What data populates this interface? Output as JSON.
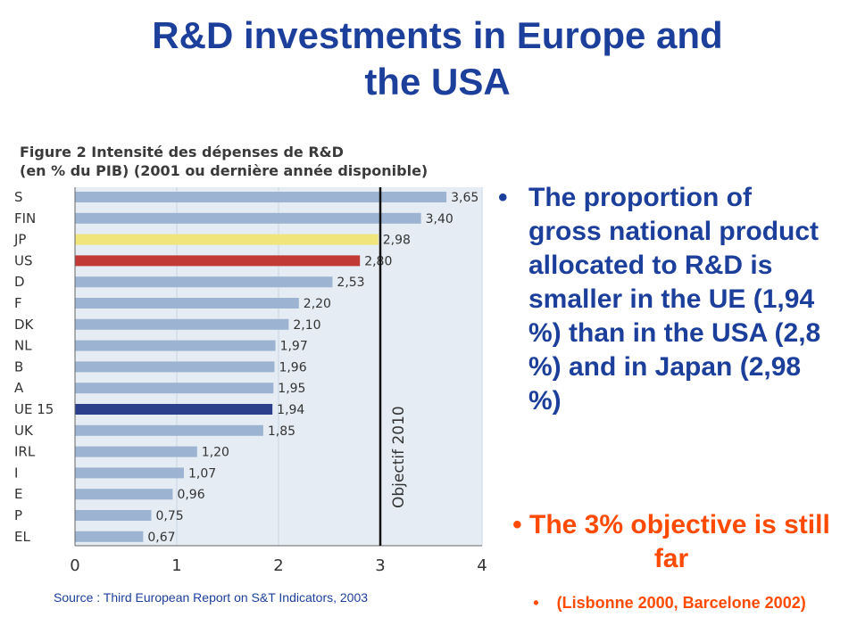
{
  "slide": {
    "title": "R&D  investments in Europe and\nthe USA",
    "source": "Source : Third European Report on S&T Indicators, 2003"
  },
  "figure": {
    "title": "Figure 2   Intensité des dépenses de R&D\n(en % du PIB) (2001 ou dernière année disponible)"
  },
  "bullets": {
    "main": "The proportion of gross national product allocated to  R&D is smaller in the UE (1,94 %) than in the USA (2,8 %) and in Japan (2,98 %)",
    "objective": "The 3% objective is  still far",
    "note": "(Lisbonne 2000, Barcelone 2002)"
  },
  "chart_data": {
    "type": "bar",
    "orientation": "horizontal",
    "categories": [
      "S",
      "FIN",
      "JP",
      "US",
      "D",
      "F",
      "DK",
      "NL",
      "B",
      "A",
      "UE 15",
      "UK",
      "IRL",
      "I",
      "E",
      "P",
      "EL"
    ],
    "values": [
      3.65,
      3.4,
      2.98,
      2.8,
      2.53,
      2.2,
      2.1,
      1.97,
      1.96,
      1.95,
      1.94,
      1.85,
      1.2,
      1.07,
      0.96,
      0.75,
      0.67
    ],
    "value_labels": [
      "3,65",
      "3,40",
      "2,98",
      "2,80",
      "2,53",
      "2,20",
      "2,10",
      "1,97",
      "1,96",
      "1,95",
      "1,94",
      "1,85",
      "1,20",
      "1,07",
      "0,96",
      "0,75",
      "0,67"
    ],
    "xlim": [
      0,
      4
    ],
    "xticks": [
      "0",
      "1",
      "2",
      "3",
      "4"
    ],
    "reference_line": {
      "value": 3,
      "label": "Objectif 2010"
    },
    "colors": {
      "default": "#9cb4d1",
      "JP": "#efe57a",
      "US": "#c23a35",
      "UE 15": "#2c3f8c",
      "plot_bg": "#e5ecf3"
    },
    "grid": true
  }
}
